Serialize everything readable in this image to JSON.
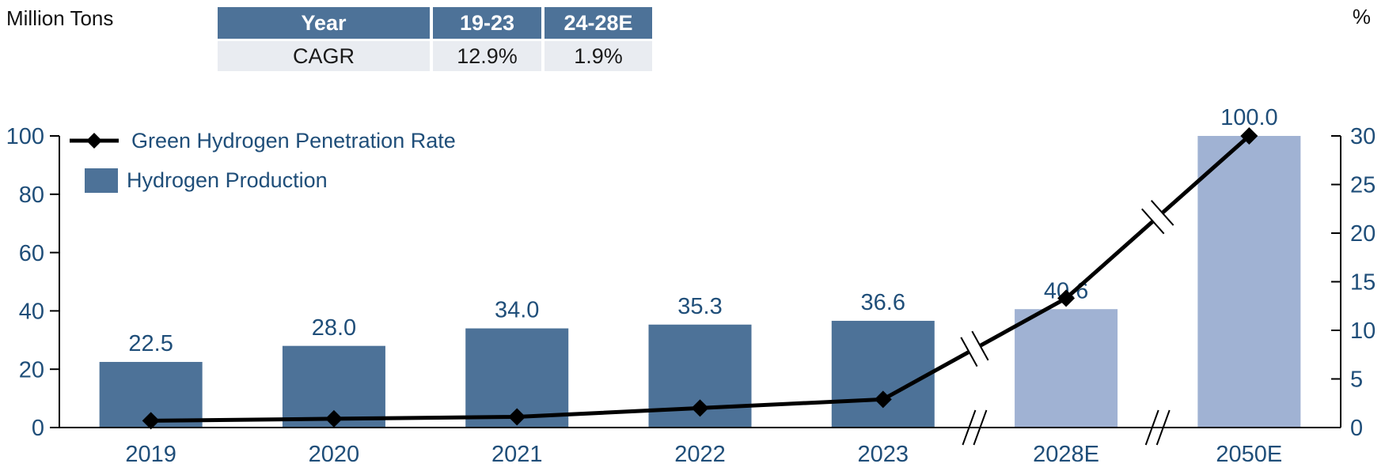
{
  "units": {
    "left": "Million Tons",
    "right": "%"
  },
  "cagr_table": {
    "header": [
      "Year",
      "19-23",
      "24-28E"
    ],
    "row_label": "CAGR",
    "values": [
      "12.9%",
      "1.9%"
    ]
  },
  "legend": [
    {
      "label": "Green Hydrogen Penetration Rate",
      "marker": "black-line-diamond"
    },
    {
      "label": "Hydrogen Production",
      "marker": "blue-square"
    }
  ],
  "colors": {
    "bar_actual": "#4d7298",
    "bar_estimate": "#a0b2d3",
    "line": "#000000",
    "label_text": "#1f4e79",
    "axis": "#000000",
    "table_header_bg": "#4d7298",
    "table_header_text": "#ffffff",
    "table_row_bg": "#e9ecf1"
  },
  "chart_data": {
    "type": "combo",
    "categories": [
      "2019",
      "2020",
      "2021",
      "2022",
      "2023",
      "2028E",
      "2050E"
    ],
    "series": [
      {
        "name": "Hydrogen Production",
        "type": "bar",
        "axis": "left",
        "values": [
          22.5,
          28.0,
          34.0,
          35.3,
          36.6,
          40.6,
          100.0
        ],
        "labels": [
          "22.5",
          "28.0",
          "34.0",
          "35.3",
          "36.6",
          "40.6",
          "100.0"
        ]
      },
      {
        "name": "Green Hydrogen Penetration Rate",
        "type": "line",
        "axis": "right",
        "estimated": true,
        "values": [
          0.7,
          0.9,
          1.1,
          2.0,
          2.9,
          13.3,
          30.0
        ]
      }
    ],
    "left_axis": {
      "title": "Million Tons",
      "ticks": [
        0,
        20,
        40,
        60,
        80,
        100
      ],
      "range": [
        0,
        100
      ]
    },
    "right_axis": {
      "title": "%",
      "ticks": [
        0,
        5,
        10,
        15,
        20,
        25,
        30
      ],
      "range": [
        0,
        30
      ]
    },
    "axis_breaks": [
      [
        "2023",
        "2028E"
      ],
      [
        "2028E",
        "2050E"
      ]
    ],
    "estimate_categories": [
      "2028E",
      "2050E"
    ],
    "legend_position": "top-left-inside",
    "grid": false
  }
}
